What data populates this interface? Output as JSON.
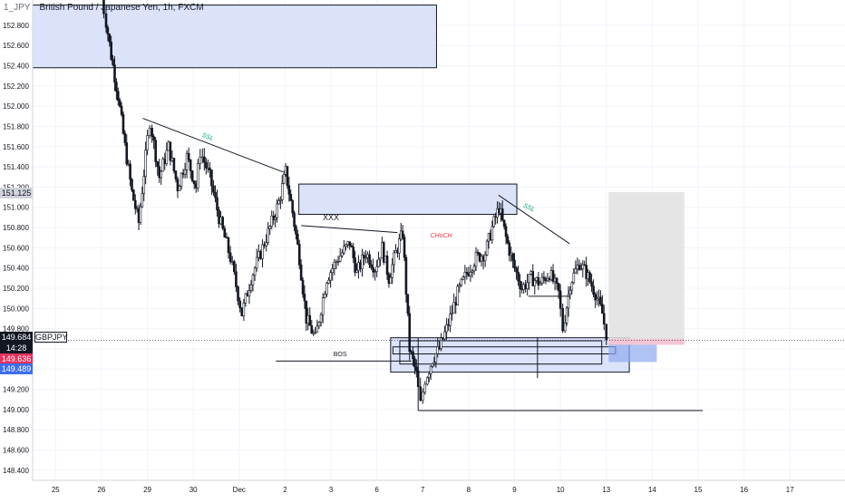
{
  "header": {
    "symbol": "1_JPY",
    "instrument": "British Pound / Japanese Yen, 1h, FXCM"
  },
  "price_tags": {
    "crosshair_price": "151.125",
    "last_price": "149.684",
    "countdown": "14:28",
    "ticker": "GBPJPY",
    "bid": "149.636",
    "ask": "149.489"
  },
  "colors": {
    "background": "#ffffff",
    "candle": "#131722",
    "zone_fill": "#dbe3fa",
    "projection_fill": "#e0e0e2",
    "stop_fill": "#f4c6d3",
    "target_fill": "#8fa9ee",
    "ssl_label": "#089981",
    "choch_label": "#f23645",
    "last_price_tag": "#131722",
    "bid_tag": "#e5315f",
    "ask_tag": "#3d6df0"
  },
  "chart_data": {
    "type": "candlestick",
    "instrument": "GBPJPY",
    "timeframe": "1h",
    "y_ticks": [
      "152.800",
      "152.600",
      "152.400",
      "152.200",
      "152.000",
      "151.800",
      "151.600",
      "151.400",
      "151.200",
      "151.000",
      "150.800",
      "150.600",
      "150.400",
      "150.200",
      "150.000",
      "149.800",
      "149.600",
      "149.400",
      "149.200",
      "149.000",
      "148.800",
      "148.600",
      "148.400"
    ],
    "y_range": [
      148.3,
      153.05
    ],
    "x_ticks": [
      "25",
      "26",
      "29",
      "30",
      "Dec",
      "2",
      "3",
      "6",
      "7",
      "8",
      "9",
      "10",
      "13",
      "14",
      "15",
      "16",
      "17"
    ],
    "x_range_days": [
      24.5,
      42.2
    ],
    "tick_days": [
      25,
      26,
      27,
      28,
      29,
      30,
      31,
      32,
      33,
      34,
      35,
      36,
      37,
      38,
      39,
      40,
      41
    ],
    "price_path": [
      [
        26.0,
        153.2
      ],
      [
        26.1,
        152.95
      ],
      [
        26.25,
        152.5
      ],
      [
        26.4,
        152.1
      ],
      [
        26.55,
        151.6
      ],
      [
        26.7,
        151.15
      ],
      [
        26.85,
        150.85
      ],
      [
        27.0,
        151.5
      ],
      [
        27.1,
        151.85
      ],
      [
        27.3,
        151.3
      ],
      [
        27.5,
        151.6
      ],
      [
        27.7,
        151.2
      ],
      [
        27.9,
        151.5
      ],
      [
        28.1,
        151.2
      ],
      [
        28.2,
        151.55
      ],
      [
        28.4,
        151.3
      ],
      [
        28.6,
        150.9
      ],
      [
        28.85,
        150.5
      ],
      [
        29.1,
        149.95
      ],
      [
        29.3,
        150.3
      ],
      [
        29.55,
        150.6
      ],
      [
        29.75,
        150.85
      ],
      [
        29.9,
        151.05
      ],
      [
        30.05,
        151.35
      ],
      [
        30.2,
        150.95
      ],
      [
        30.35,
        150.5
      ],
      [
        30.5,
        149.9
      ],
      [
        30.7,
        149.7
      ],
      [
        30.95,
        150.3
      ],
      [
        31.2,
        150.5
      ],
      [
        31.45,
        150.65
      ],
      [
        31.6,
        150.35
      ],
      [
        31.8,
        150.55
      ],
      [
        32.0,
        150.4
      ],
      [
        32.15,
        150.6
      ],
      [
        32.3,
        150.3
      ],
      [
        32.45,
        150.55
      ],
      [
        32.6,
        150.75
      ],
      [
        32.75,
        149.6
      ],
      [
        32.9,
        149.35
      ],
      [
        33.0,
        149.05
      ],
      [
        33.1,
        149.3
      ],
      [
        33.25,
        149.5
      ],
      [
        33.4,
        149.6
      ],
      [
        33.6,
        149.85
      ],
      [
        33.8,
        150.15
      ],
      [
        34.0,
        150.35
      ],
      [
        34.2,
        150.5
      ],
      [
        34.4,
        150.55
      ],
      [
        34.55,
        150.8
      ],
      [
        34.7,
        151.0
      ],
      [
        34.85,
        150.7
      ],
      [
        35.0,
        150.45
      ],
      [
        35.2,
        150.2
      ],
      [
        35.4,
        150.3
      ],
      [
        35.6,
        150.25
      ],
      [
        35.8,
        150.35
      ],
      [
        36.0,
        150.15
      ],
      [
        36.1,
        149.8
      ],
      [
        36.25,
        150.25
      ],
      [
        36.45,
        150.45
      ],
      [
        36.6,
        150.35
      ],
      [
        36.8,
        150.15
      ],
      [
        36.95,
        149.95
      ],
      [
        37.05,
        149.75
      ]
    ],
    "annotations": {
      "ssl_1": "SSL",
      "ssl_2": "SSL",
      "xxx": "XXX",
      "choch": "CHoCH",
      "bos": "BOS"
    },
    "zones": [
      {
        "name": "upper-supply-zone",
        "x0": 24.5,
        "x1": 33.3,
        "y0": 152.38,
        "y1": 153.0
      },
      {
        "name": "mid-supply-zone",
        "x0": 30.3,
        "x1": 35.05,
        "y0": 150.93,
        "y1": 151.23
      },
      {
        "name": "demand-zone",
        "x0": 32.3,
        "x1": 37.5,
        "y0": 149.37,
        "y1": 149.71
      }
    ],
    "trendlines": [
      {
        "name": "ssl-trendline-1",
        "x0": 26.9,
        "y0": 151.88,
        "x1": 29.95,
        "y1": 151.35
      },
      {
        "name": "ssl-trendline-2",
        "x0": 34.65,
        "y0": 151.12,
        "x1": 36.2,
        "y1": 150.64
      },
      {
        "name": "xxx-line",
        "x0": 30.35,
        "y0": 150.82,
        "x1": 32.45,
        "y1": 150.75
      },
      {
        "name": "bos-line",
        "x0": 29.8,
        "y0": 149.48,
        "x1": 32.75,
        "y1": 149.48
      },
      {
        "name": "low-line",
        "x0": 32.9,
        "y0": 148.99,
        "x1": 39.1,
        "y1": 148.99
      },
      {
        "name": "mid-range-line",
        "x0": 35.3,
        "y0": 150.12,
        "x1": 36.2,
        "y1": 150.12
      }
    ]
  }
}
